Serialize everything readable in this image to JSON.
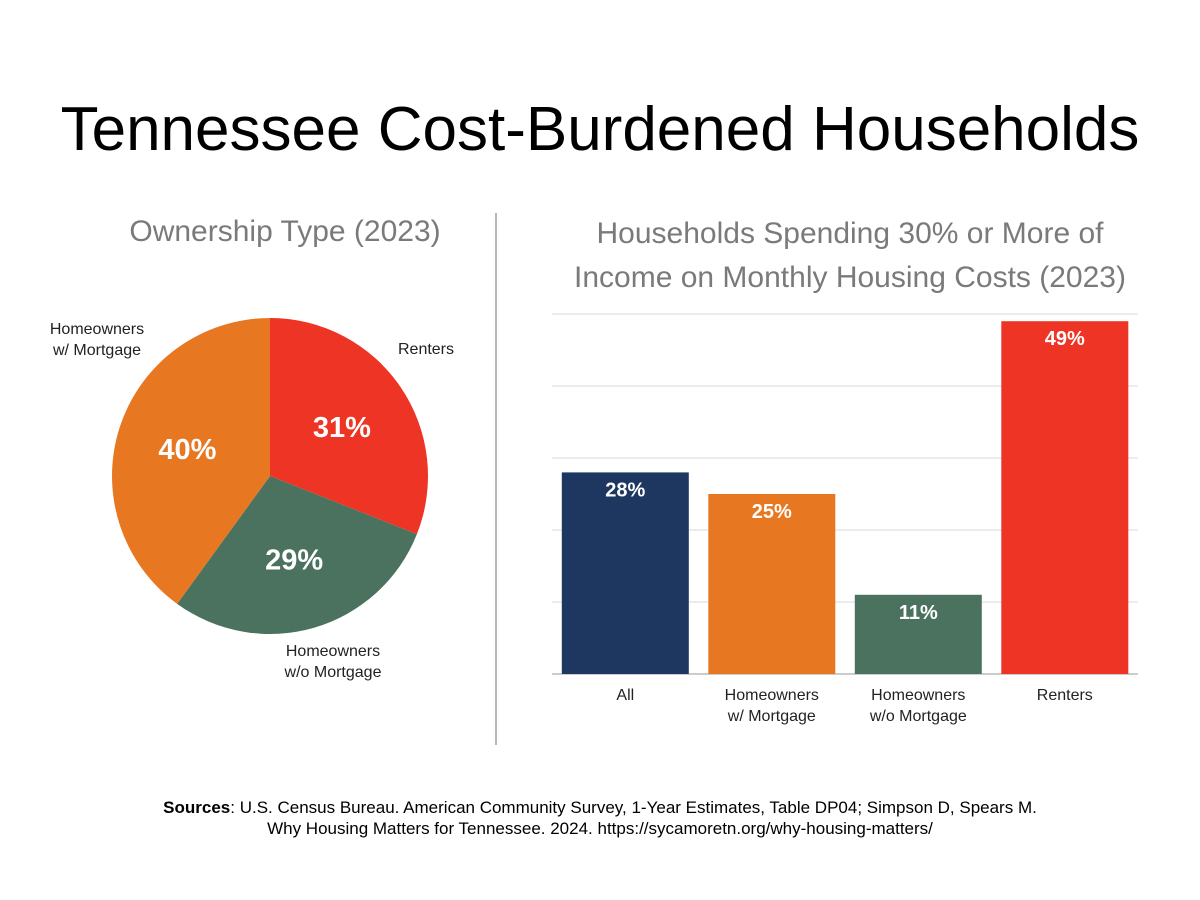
{
  "title": "Tennessee Cost-Burdened Households",
  "chart_data": [
    {
      "type": "pie",
      "title": "Ownership Type (2023)",
      "slices": [
        {
          "label_lines": [
            "Renters"
          ],
          "value": 31,
          "value_label": "31%",
          "color": "#EE3424"
        },
        {
          "label_lines": [
            "Homeowners",
            "w/o Mortgage"
          ],
          "value": 29,
          "value_label": "29%",
          "color": "#4A725E"
        },
        {
          "label_lines": [
            "Homeowners",
            "w/ Mortgage"
          ],
          "value": 40,
          "value_label": "40%",
          "color": "#E87722"
        }
      ]
    },
    {
      "type": "bar",
      "title_lines": [
        "Households Spending 30% or More of",
        "Income on Monthly Housing Costs (2023)"
      ],
      "categories": [
        [
          "All"
        ],
        [
          "Homeowners",
          "w/ Mortgage"
        ],
        [
          "Homeowners",
          "w/o Mortgage"
        ],
        [
          "Renters"
        ]
      ],
      "values": [
        28,
        25,
        11,
        49
      ],
      "value_labels": [
        "28%",
        "25%",
        "11%",
        "49%"
      ],
      "colors": [
        "#1E3760",
        "#E87722",
        "#4A725E",
        "#EE3424"
      ],
      "ylim": [
        0,
        50
      ],
      "grid": true
    }
  ],
  "footer": {
    "label": "Sources",
    "line1": ": U.S. Census Bureau. American Community Survey, 1-Year Estimates, Table DP04; Simpson D, Spears M.",
    "line2": "Why Housing Matters for Tennessee. 2024. https://sycamoretn.org/why-housing-matters/"
  }
}
